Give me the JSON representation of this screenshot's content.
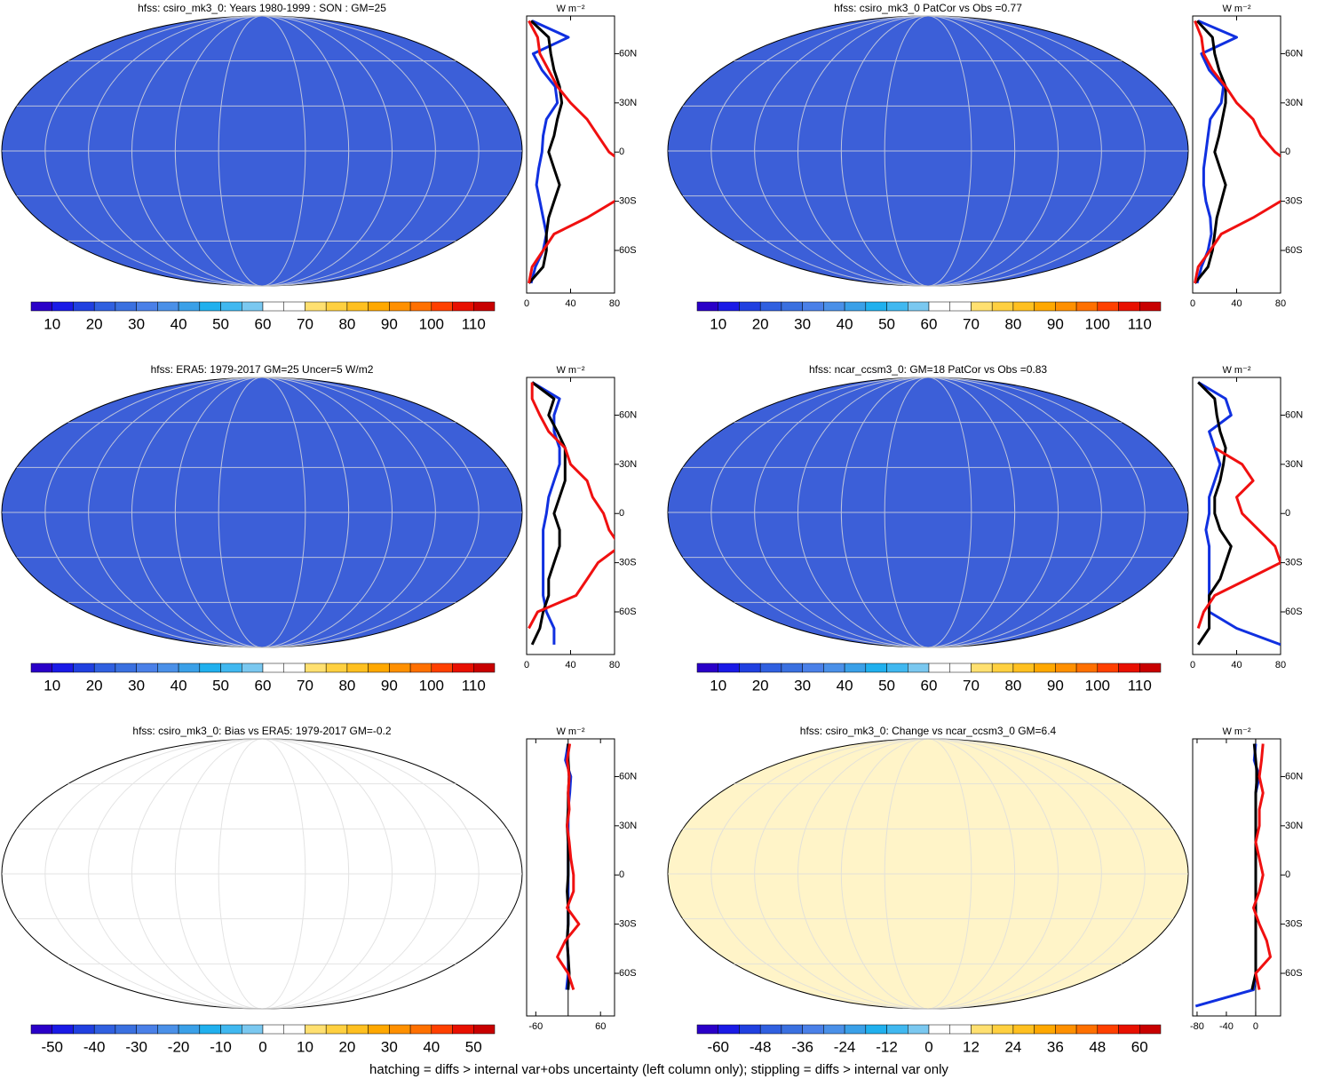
{
  "footnote": "hatching = diffs > internal var+obs uncertainty (left column only); stippling = diffs > internal var only",
  "colorbar_colors": [
    "#2a00c8",
    "#1a1ae6",
    "#2040e0",
    "#3060e0",
    "#3a70e0",
    "#4a80e8",
    "#4a90e8",
    "#3aa0e8",
    "#20b0ee",
    "#40b8f0",
    "#7ac8f0",
    "#ffffff",
    "#ffffff",
    "#ffe070",
    "#ffd040",
    "#ffc020",
    "#ffa800",
    "#ff9000",
    "#ff7000",
    "#ff4000",
    "#e81000",
    "#c80000"
  ],
  "chart_data": [
    {
      "type": "map-zonal",
      "title": "hfss: csiro_mk3_0: Years 1980-1999 : SON : GM=25",
      "map_color": "#3c5fd8",
      "cbar_lim": [
        5,
        115
      ],
      "cbar_ticks": [
        10,
        20,
        30,
        40,
        50,
        60,
        70,
        80,
        90,
        100,
        110
      ],
      "x_label": "W m⁻²",
      "xlim": [
        0,
        80
      ],
      "xticks": [
        0,
        40,
        80
      ],
      "ylim": [
        -86,
        83
      ],
      "yticks": [
        {
          "value": 60,
          "label": "60N"
        },
        {
          "value": 30,
          "label": "30N"
        },
        0,
        {
          "value": -30,
          "label": "30S"
        },
        {
          "value": -60,
          "label": "60S"
        }
      ],
      "y": [
        -80,
        -70,
        -60,
        -50,
        -40,
        -30,
        -20,
        -10,
        0,
        10,
        20,
        30,
        40,
        50,
        60,
        70,
        80
      ],
      "series": [
        {
          "color": "#1030e0",
          "values": [
            4,
            8,
            15,
            18,
            15,
            12,
            9,
            11,
            14,
            15,
            18,
            28,
            26,
            14,
            6,
            38,
            5
          ]
        },
        {
          "color": "#000000",
          "values": [
            2,
            15,
            18,
            18,
            20,
            25,
            30,
            25,
            20,
            25,
            28,
            32,
            30,
            25,
            22,
            20,
            4
          ]
        },
        {
          "color": "#f01010",
          "values": [
            2,
            5,
            15,
            25,
            55,
            80,
            95,
            95,
            75,
            65,
            55,
            40,
            28,
            20,
            12,
            10,
            2
          ]
        }
      ]
    },
    {
      "type": "map-zonal",
      "title": "hfss: csiro_mk3_0 PatCor vs Obs =0.77",
      "map_color": "#3c5fd8",
      "cbar_lim": [
        5,
        115
      ],
      "cbar_ticks": [
        10,
        20,
        30,
        40,
        50,
        60,
        70,
        80,
        90,
        100,
        110
      ],
      "x_label": "W m⁻²",
      "xlim": [
        0,
        80
      ],
      "xticks": [
        0,
        40,
        80
      ],
      "ylim": [
        -86,
        83
      ],
      "yticks": [
        {
          "value": 60,
          "label": "60N"
        },
        {
          "value": 30,
          "label": "30N"
        },
        0,
        {
          "value": -30,
          "label": "30S"
        },
        {
          "value": -60,
          "label": "60S"
        }
      ],
      "y": [
        -80,
        -70,
        -60,
        -50,
        -40,
        -30,
        -20,
        -10,
        0,
        10,
        20,
        30,
        40,
        50,
        60,
        70,
        80
      ],
      "series": [
        {
          "color": "#1030e0",
          "values": [
            4,
            8,
            14,
            17,
            16,
            12,
            10,
            10,
            12,
            14,
            16,
            26,
            28,
            15,
            8,
            40,
            5
          ]
        },
        {
          "color": "#000000",
          "values": [
            2,
            14,
            18,
            20,
            22,
            26,
            30,
            25,
            20,
            24,
            27,
            30,
            30,
            24,
            20,
            18,
            4
          ]
        },
        {
          "color": "#f01010",
          "values": [
            2,
            5,
            16,
            26,
            55,
            80,
            95,
            95,
            75,
            62,
            55,
            40,
            30,
            18,
            10,
            8,
            2
          ]
        }
      ]
    },
    {
      "type": "map-zonal",
      "title": "hfss: ERA5: 1979-2017 GM=25 Uncer=5 W/m2",
      "map_color": "#3c5fd8",
      "cbar_lim": [
        5,
        115
      ],
      "cbar_ticks": [
        10,
        20,
        30,
        40,
        50,
        60,
        70,
        80,
        90,
        100,
        110
      ],
      "x_label": "W m⁻²",
      "xlim": [
        0,
        80
      ],
      "xticks": [
        0,
        40,
        80
      ],
      "ylim": [
        -86,
        83
      ],
      "yticks": [
        {
          "value": 60,
          "label": "60N"
        },
        {
          "value": 30,
          "label": "30N"
        },
        0,
        {
          "value": -30,
          "label": "30S"
        },
        {
          "value": -60,
          "label": "60S"
        }
      ],
      "y": [
        -80,
        -70,
        -60,
        -50,
        -40,
        -30,
        -20,
        -10,
        0,
        10,
        20,
        30,
        40,
        50,
        60,
        70,
        80
      ],
      "series": [
        {
          "color": "#1030e0",
          "values": [
            25,
            25,
            18,
            15,
            15,
            15,
            15,
            15,
            18,
            20,
            25,
            30,
            30,
            25,
            25,
            30,
            5
          ]
        },
        {
          "color": "#000000",
          "values": [
            5,
            12,
            15,
            20,
            20,
            25,
            30,
            30,
            25,
            30,
            35,
            35,
            35,
            28,
            20,
            25,
            5
          ]
        },
        {
          "color": "#f01010",
          "values": [
            null,
            2,
            10,
            45,
            55,
            65,
            85,
            75,
            70,
            60,
            55,
            40,
            35,
            20,
            12,
            5,
            5
          ]
        }
      ]
    },
    {
      "type": "map-zonal",
      "title": "hfss: ncar_ccsm3_0: GM=18 PatCor vs Obs =0.83",
      "map_color": "#3c5fd8",
      "cbar_lim": [
        5,
        115
      ],
      "cbar_ticks": [
        10,
        20,
        30,
        40,
        50,
        60,
        70,
        80,
        90,
        100,
        110
      ],
      "x_label": "W m⁻²",
      "xlim": [
        0,
        80
      ],
      "xticks": [
        0,
        40,
        80
      ],
      "ylim": [
        -86,
        83
      ],
      "yticks": [
        {
          "value": 60,
          "label": "60N"
        },
        {
          "value": 30,
          "label": "30N"
        },
        0,
        {
          "value": -30,
          "label": "30S"
        },
        {
          "value": -60,
          "label": "60S"
        }
      ],
      "y": [
        -80,
        -70,
        -60,
        -50,
        -40,
        -30,
        -20,
        -10,
        0,
        10,
        20,
        30,
        40,
        50,
        60,
        70,
        80
      ],
      "series": [
        {
          "color": "#1030e0",
          "values": [
            80,
            40,
            15,
            15,
            15,
            15,
            15,
            12,
            15,
            15,
            20,
            25,
            20,
            15,
            35,
            30,
            5
          ]
        },
        {
          "color": "#000000",
          "values": [
            5,
            15,
            15,
            15,
            25,
            30,
            35,
            25,
            20,
            20,
            25,
            28,
            30,
            25,
            22,
            20,
            5
          ]
        },
        {
          "color": "#f01010",
          "values": [
            null,
            5,
            10,
            20,
            50,
            80,
            75,
            60,
            45,
            40,
            55,
            45,
            20,
            null,
            null,
            null,
            null
          ]
        }
      ]
    },
    {
      "type": "map-zonal",
      "title": "hfss: csiro_mk3_0: Bias vs ERA5: 1979-2017  GM=-0.2",
      "map_color": "#ffffff",
      "cbar_lim": [
        -55,
        55
      ],
      "cbar_ticks": [
        -50,
        -40,
        -30,
        -20,
        -10,
        0,
        10,
        20,
        30,
        40,
        50
      ],
      "x_label": "W m⁻²",
      "xlim": [
        -77,
        86
      ],
      "xticks": [
        -60,
        60
      ],
      "ylim": [
        -86,
        83
      ],
      "yticks": [
        {
          "value": 60,
          "label": "60N"
        },
        {
          "value": 30,
          "label": "30N"
        },
        0,
        {
          "value": -30,
          "label": "30S"
        },
        {
          "value": -60,
          "label": "60S"
        }
      ],
      "y": [
        -80,
        -70,
        -60,
        -50,
        -40,
        -30,
        -20,
        -10,
        0,
        10,
        20,
        30,
        40,
        50,
        60,
        70,
        80
      ],
      "series": [
        {
          "color": "#1030e0",
          "values": [
            null,
            -3,
            0,
            0,
            -2,
            0,
            0,
            0,
            0,
            0,
            0,
            0,
            0,
            3,
            5,
            -5,
            0
          ]
        },
        {
          "color": "#000000",
          "values": [
            null,
            0,
            2,
            0,
            -2,
            0,
            0,
            -2,
            0,
            0,
            0,
            -2,
            0,
            0,
            2,
            0,
            0
          ]
        },
        {
          "color": "#f01010",
          "values": [
            null,
            10,
            0,
            -20,
            -5,
            20,
            -2,
            10,
            10,
            5,
            2,
            -2,
            2,
            0,
            2,
            -2,
            3
          ]
        }
      ]
    },
    {
      "type": "map-zonal",
      "title": "hfss: csiro_mk3_0: Change vs ncar_ccsm3_0 GM=6.4",
      "map_color": "#fff4c8",
      "cbar_lim": [
        -66,
        66
      ],
      "cbar_ticks": [
        -60,
        -48,
        -36,
        -24,
        -12,
        0,
        12,
        24,
        36,
        48,
        60
      ],
      "x_label": "W m⁻²",
      "xlim": [
        -86,
        34
      ],
      "xticks": [
        -80,
        -40,
        0
      ],
      "ylim": [
        -86,
        83
      ],
      "yticks": [
        {
          "value": 60,
          "label": "60N"
        },
        {
          "value": 30,
          "label": "30N"
        },
        0,
        {
          "value": -30,
          "label": "30S"
        },
        {
          "value": -60,
          "label": "60S"
        }
      ],
      "y": [
        -80,
        -70,
        -60,
        -50,
        -40,
        -30,
        -20,
        -10,
        0,
        10,
        20,
        30,
        40,
        50,
        60,
        70,
        80
      ],
      "series": [
        {
          "color": "#1030e0",
          "values": [
            -82,
            -3,
            0,
            0,
            0,
            0,
            0,
            0,
            0,
            0,
            0,
            0,
            0,
            0,
            5,
            -2,
            0
          ]
        },
        {
          "color": "#000000",
          "values": [
            null,
            -5,
            0,
            0,
            0,
            0,
            0,
            0,
            0,
            0,
            0,
            0,
            0,
            0,
            2,
            0,
            -2
          ]
        },
        {
          "color": "#f01010",
          "values": [
            null,
            5,
            0,
            20,
            15,
            5,
            -3,
            5,
            10,
            5,
            0,
            5,
            5,
            10,
            5,
            8,
            10
          ]
        }
      ]
    }
  ]
}
